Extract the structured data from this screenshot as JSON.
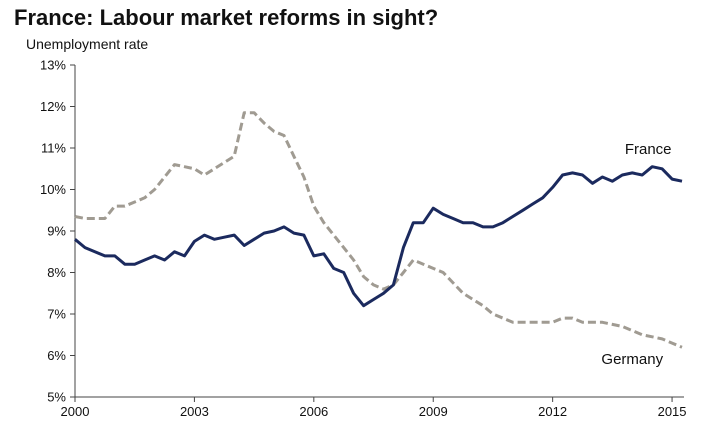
{
  "chart_data": {
    "type": "line",
    "title": "France: Labour market reforms in sight?",
    "subtitle": "Unemployment rate",
    "xlabel": "",
    "ylabel": "",
    "xlim": [
      2000,
      2015.3
    ],
    "ylim": [
      5,
      13
    ],
    "x_ticks": [
      {
        "value": 2000,
        "label": "2000"
      },
      {
        "value": 2003,
        "label": "2003"
      },
      {
        "value": 2006,
        "label": "2006"
      },
      {
        "value": 2009,
        "label": "2009"
      },
      {
        "value": 2012,
        "label": "2012"
      },
      {
        "value": 2015,
        "label": "2015"
      }
    ],
    "y_ticks": [
      {
        "value": 5,
        "label": "5%"
      },
      {
        "value": 6,
        "label": "6%"
      },
      {
        "value": 7,
        "label": "7%"
      },
      {
        "value": 8,
        "label": "8%"
      },
      {
        "value": 9,
        "label": "9%"
      },
      {
        "value": 10,
        "label": "10%"
      },
      {
        "value": 11,
        "label": "11%"
      },
      {
        "value": 12,
        "label": "12%"
      },
      {
        "value": 13,
        "label": "13%"
      }
    ],
    "grid": false,
    "legend": "none",
    "series": [
      {
        "name": "France",
        "color": "#1b2a5e",
        "style": "solid",
        "x": [
          2000.0,
          2000.25,
          2000.5,
          2000.75,
          2001.0,
          2001.25,
          2001.5,
          2001.75,
          2002.0,
          2002.25,
          2002.5,
          2002.75,
          2003.0,
          2003.25,
          2003.5,
          2003.75,
          2004.0,
          2004.25,
          2004.5,
          2004.75,
          2005.0,
          2005.25,
          2005.5,
          2005.75,
          2006.0,
          2006.25,
          2006.5,
          2006.75,
          2007.0,
          2007.25,
          2007.5,
          2007.75,
          2008.0,
          2008.25,
          2008.5,
          2008.75,
          2009.0,
          2009.25,
          2009.5,
          2009.75,
          2010.0,
          2010.25,
          2010.5,
          2010.75,
          2011.0,
          2011.25,
          2011.5,
          2011.75,
          2012.0,
          2012.25,
          2012.5,
          2012.75,
          2013.0,
          2013.25,
          2013.5,
          2013.75,
          2014.0,
          2014.25,
          2014.5,
          2014.75,
          2015.0,
          2015.25
        ],
        "values": [
          8.8,
          8.6,
          8.5,
          8.4,
          8.4,
          8.2,
          8.2,
          8.3,
          8.4,
          8.3,
          8.5,
          8.4,
          8.75,
          8.9,
          8.8,
          8.85,
          8.9,
          8.65,
          8.8,
          8.95,
          9.0,
          9.1,
          8.95,
          8.9,
          8.4,
          8.45,
          8.1,
          8.0,
          7.5,
          7.2,
          7.35,
          7.5,
          7.7,
          8.6,
          9.2,
          9.2,
          9.55,
          9.4,
          9.3,
          9.2,
          9.2,
          9.1,
          9.1,
          9.2,
          9.35,
          9.5,
          9.65,
          9.8,
          10.05,
          10.35,
          10.4,
          10.35,
          10.15,
          10.3,
          10.2,
          10.35,
          10.4,
          10.35,
          10.55,
          10.5,
          10.25,
          10.2
        ]
      },
      {
        "name": "Germany",
        "color": "#a09b92",
        "style": "dashed",
        "x": [
          2000.0,
          2000.25,
          2000.5,
          2000.75,
          2001.0,
          2001.25,
          2001.5,
          2001.75,
          2002.0,
          2002.25,
          2002.5,
          2002.75,
          2003.0,
          2003.25,
          2003.5,
          2003.75,
          2004.0,
          2004.25,
          2004.5,
          2004.75,
          2005.0,
          2005.25,
          2005.5,
          2005.75,
          2006.0,
          2006.25,
          2006.5,
          2006.75,
          2007.0,
          2007.25,
          2007.5,
          2007.75,
          2008.0,
          2008.25,
          2008.5,
          2008.75,
          2009.0,
          2009.25,
          2009.5,
          2009.75,
          2010.0,
          2010.25,
          2010.5,
          2010.75,
          2011.0,
          2011.25,
          2011.5,
          2011.75,
          2012.0,
          2012.25,
          2012.5,
          2012.75,
          2013.0,
          2013.25,
          2013.5,
          2013.75,
          2014.0,
          2014.25,
          2014.5,
          2014.75,
          2015.0,
          2015.25
        ],
        "values": [
          9.35,
          9.3,
          9.3,
          9.3,
          9.6,
          9.6,
          9.7,
          9.8,
          10.0,
          10.3,
          10.6,
          10.55,
          10.5,
          10.35,
          10.5,
          10.65,
          10.8,
          11.85,
          11.85,
          11.6,
          11.4,
          11.3,
          10.8,
          10.3,
          9.6,
          9.2,
          8.9,
          8.6,
          8.3,
          7.9,
          7.7,
          7.6,
          7.7,
          8.0,
          8.3,
          8.2,
          8.1,
          8.0,
          7.75,
          7.5,
          7.35,
          7.2,
          7.0,
          6.9,
          6.8,
          6.8,
          6.8,
          6.8,
          6.8,
          6.9,
          6.9,
          6.8,
          6.8,
          6.8,
          6.75,
          6.7,
          6.6,
          6.5,
          6.45,
          6.4,
          6.3,
          6.2
        ]
      }
    ],
    "annotations": [
      {
        "text": "France",
        "series": "France",
        "x": 2014.4,
        "y": 10.85
      },
      {
        "text": "Germany",
        "series": "Germany",
        "x": 2014.0,
        "y": 5.8
      }
    ]
  }
}
